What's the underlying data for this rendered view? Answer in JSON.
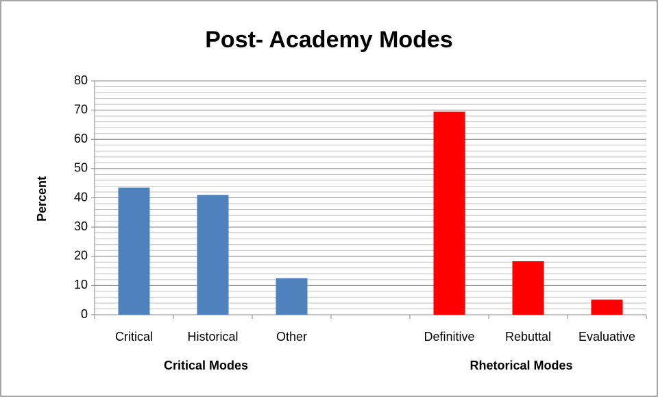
{
  "chart_data": {
    "type": "bar",
    "title": "Post- Academy Modes",
    "y_label": "Percent",
    "categories": [
      "Critical",
      "Historical",
      "Other",
      null,
      "Definitive",
      "Rebuttal",
      "Evaluative"
    ],
    "values": [
      43.5,
      41,
      12.5,
      null,
      69.5,
      18.3,
      5.2
    ],
    "colors": [
      "#4f81bd",
      "#4f81bd",
      "#4f81bd",
      null,
      "#ff0000",
      "#ff0000",
      "#ff0000"
    ],
    "groups": [
      "Critical Modes",
      "Rhetorical Modes"
    ],
    "ylim": [
      0,
      80
    ],
    "yticks": [
      0,
      10,
      20,
      30,
      40,
      50,
      60,
      70,
      80
    ],
    "grid": true,
    "minor_grid_step": 2
  }
}
